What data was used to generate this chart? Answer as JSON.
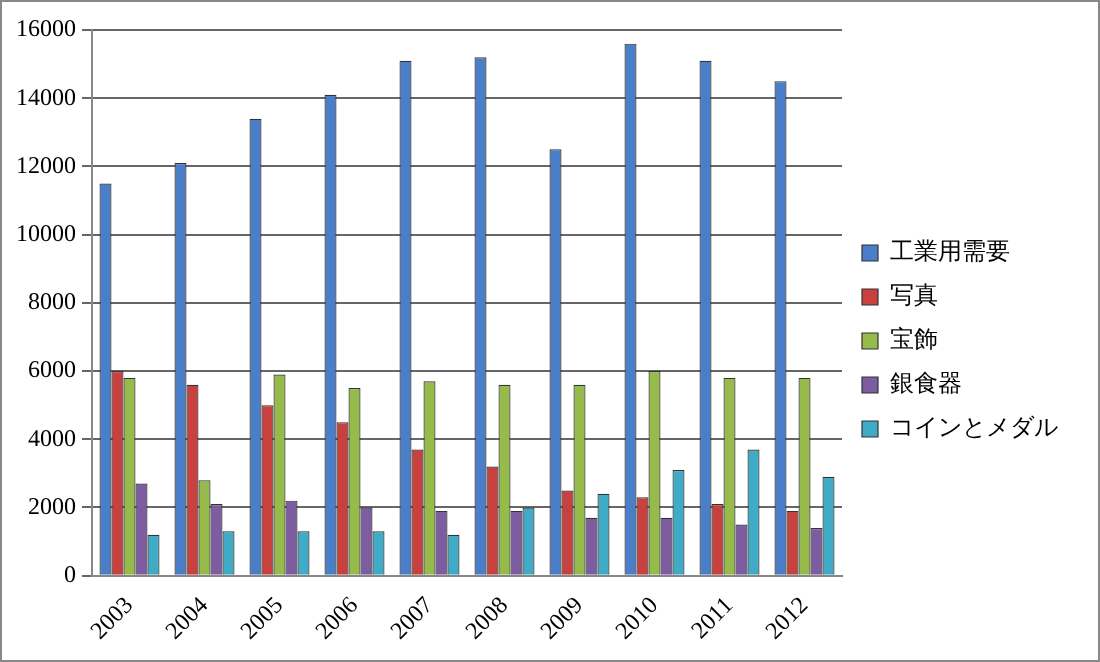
{
  "chart_data": {
    "type": "bar",
    "categories": [
      "2003",
      "2004",
      "2005",
      "2006",
      "2007",
      "2008",
      "2009",
      "2010",
      "2011",
      "2012"
    ],
    "series": [
      {
        "name": "工業用需要",
        "color": "#4a7ec8",
        "values": [
          11500,
          12100,
          13400,
          14100,
          15100,
          15200,
          12500,
          15600,
          15100,
          14500
        ]
      },
      {
        "name": "写真",
        "color": "#c9413e",
        "values": [
          6000,
          5600,
          5000,
          4500,
          3700,
          3200,
          2500,
          2300,
          2100,
          1900
        ]
      },
      {
        "name": "宝飾",
        "color": "#97bb4a",
        "values": [
          5800,
          2800,
          5900,
          5500,
          5700,
          5600,
          5600,
          6000,
          5800,
          5800
        ]
      },
      {
        "name": "銀食器",
        "color": "#7d5ca2",
        "values": [
          2700,
          2100,
          2200,
          2000,
          1900,
          1900,
          1700,
          1700,
          1500,
          1400
        ]
      },
      {
        "name": "コインとメダル",
        "color": "#3fabc6",
        "values": [
          1200,
          1300,
          1300,
          1300,
          1200,
          2000,
          2400,
          3100,
          3700,
          2900
        ]
      }
    ],
    "ylim": [
      0,
      16000
    ],
    "yticks": [
      0,
      2000,
      4000,
      6000,
      8000,
      10000,
      12000,
      14000,
      16000
    ],
    "grid": "y",
    "legend": "right"
  }
}
